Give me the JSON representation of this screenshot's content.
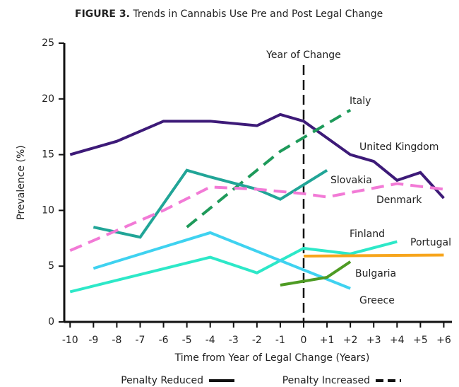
{
  "chart_data": {
    "type": "line",
    "figure_label": "FIGURE 3.",
    "title": "Trends in Cannabis Use Pre and Post Legal Change",
    "x_label": "Time from Year of Legal Change (Years)",
    "y_label": "Prevalence (%)",
    "xlim": [
      -10.25,
      6.35
    ],
    "ylim": [
      0,
      25
    ],
    "xticks": [
      -10,
      -9,
      -8,
      -7,
      -6,
      -5,
      -4,
      -3,
      -2,
      -1,
      0,
      {
        "value": 1,
        "label": "+1"
      },
      {
        "value": 2,
        "label": "+2"
      },
      {
        "value": 3,
        "label": "+3"
      },
      {
        "value": 4,
        "label": "+4"
      },
      {
        "value": 5,
        "label": "+5"
      },
      {
        "value": 6,
        "label": "+6"
      }
    ],
    "yticks": [
      0,
      5,
      10,
      15,
      20,
      25
    ],
    "annotation": {
      "text": "Year of Change",
      "x": 0
    },
    "series": [
      {
        "name": "United Kingdom",
        "color": "#3d1a78",
        "dashed": false,
        "x": [
          -10,
          -8,
          -6,
          -4,
          -2,
          -1,
          0,
          2,
          3,
          4,
          5,
          6
        ],
        "values": [
          15,
          16.2,
          18,
          18,
          17.6,
          18.6,
          18,
          15,
          14.4,
          12.7,
          13.4,
          11.1
        ]
      },
      {
        "name": "Italy",
        "color": "#1e9a5a",
        "dashed": true,
        "x": [
          -5,
          -1,
          2
        ],
        "values": [
          8.5,
          15.3,
          19
        ]
      },
      {
        "name": "Slovakia",
        "color": "#21a597",
        "dashed": false,
        "x": [
          -9,
          -7,
          -5,
          -4,
          -2,
          -1,
          1
        ],
        "values": [
          8.5,
          7.6,
          13.6,
          13,
          11.9,
          11,
          13.6
        ]
      },
      {
        "name": "Denmark",
        "color": "#f27ad6",
        "dashed": true,
        "x": [
          -10,
          -6,
          -4,
          -2,
          0,
          1,
          4,
          6
        ],
        "values": [
          6.4,
          10,
          12.1,
          11.9,
          11.5,
          11.2,
          12.4,
          11.9
        ]
      },
      {
        "name": "Finland",
        "color": "#2de8c8",
        "dashed": false,
        "x": [
          -10,
          -4,
          -2,
          0,
          2,
          4
        ],
        "values": [
          2.7,
          5.8,
          4.4,
          6.6,
          6.1,
          7.2
        ]
      },
      {
        "name": "Greece",
        "color": "#3fd2f0",
        "dashed": false,
        "x": [
          -9,
          -4,
          2
        ],
        "values": [
          4.8,
          8,
          3
        ]
      },
      {
        "name": "Portugal",
        "color": "#f7a51c",
        "dashed": false,
        "x": [
          0,
          6
        ],
        "values": [
          5.9,
          6
        ]
      },
      {
        "name": "Bulgaria",
        "color": "#4e9b23",
        "dashed": false,
        "x": [
          -1,
          1,
          2
        ],
        "values": [
          3.3,
          4,
          5.4
        ]
      }
    ],
    "legend": [
      {
        "name": "Penalty Reduced",
        "dashed": false
      },
      {
        "name": "Penalty Increased",
        "dashed": true
      }
    ]
  }
}
